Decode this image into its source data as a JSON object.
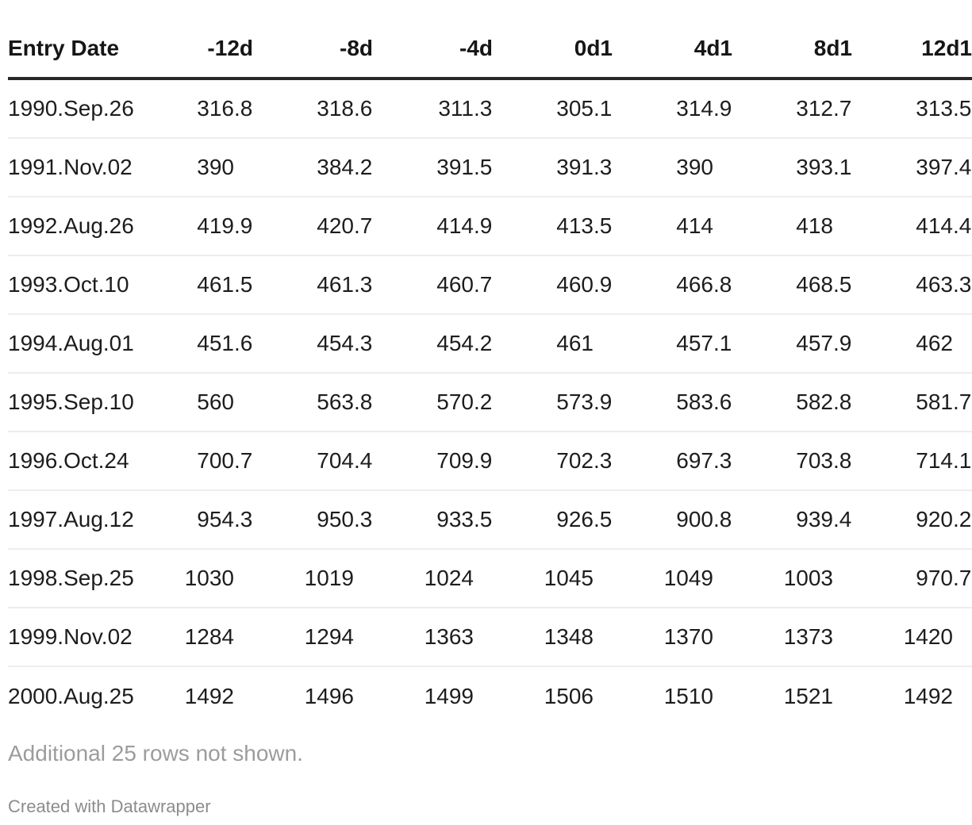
{
  "chart_data": {
    "type": "table",
    "columns": [
      "Entry Date",
      "-12d",
      "-8d",
      "-4d",
      "0d1",
      "4d1",
      "8d1",
      "12d1"
    ],
    "rows": [
      {
        "date": "1990.Sep.26",
        "values": [
          "316.8",
          "318.6",
          "311.3",
          "305.1",
          "314.9",
          "312.7",
          "313.5"
        ]
      },
      {
        "date": "1991.Nov.02",
        "values": [
          "390",
          "384.2",
          "391.5",
          "391.3",
          "390",
          "393.1",
          "397.4"
        ]
      },
      {
        "date": "1992.Aug.26",
        "values": [
          "419.9",
          "420.7",
          "414.9",
          "413.5",
          "414",
          "418",
          "414.4"
        ]
      },
      {
        "date": "1993.Oct.10",
        "values": [
          "461.5",
          "461.3",
          "460.7",
          "460.9",
          "466.8",
          "468.5",
          "463.3"
        ]
      },
      {
        "date": "1994.Aug.01",
        "values": [
          "451.6",
          "454.3",
          "454.2",
          "461",
          "457.1",
          "457.9",
          "462"
        ]
      },
      {
        "date": "1995.Sep.10",
        "values": [
          "560",
          "563.8",
          "570.2",
          "573.9",
          "583.6",
          "582.8",
          "581.7"
        ]
      },
      {
        "date": "1996.Oct.24",
        "values": [
          "700.7",
          "704.4",
          "709.9",
          "702.3",
          "697.3",
          "703.8",
          "714.1"
        ]
      },
      {
        "date": "1997.Aug.12",
        "values": [
          "954.3",
          "950.3",
          "933.5",
          "926.5",
          "900.8",
          "939.4",
          "920.2"
        ]
      },
      {
        "date": "1998.Sep.25",
        "values": [
          "1030",
          "1019",
          "1024",
          "1045",
          "1049",
          "1003",
          "970.7"
        ]
      },
      {
        "date": "1999.Nov.02",
        "values": [
          "1284",
          "1294",
          "1363",
          "1348",
          "1370",
          "1373",
          "1420"
        ]
      },
      {
        "date": "2000.Aug.25",
        "values": [
          "1492",
          "1496",
          "1499",
          "1506",
          "1510",
          "1521",
          "1492"
        ]
      }
    ],
    "layout_hints": {
      "alignment": "numbers aligned on decimal point",
      "header_rule": true,
      "row_separators": true
    }
  },
  "footer": {
    "note": "Additional 25 rows not shown.",
    "credit": "Created with Datawrapper"
  },
  "colors": {
    "text": "#1d1d1d",
    "header_text": "#161616",
    "header_rule": "#282828",
    "row_separator": "#ededed",
    "note_gray": "#9c9c9c",
    "credit_gray": "#8c8c8c"
  }
}
